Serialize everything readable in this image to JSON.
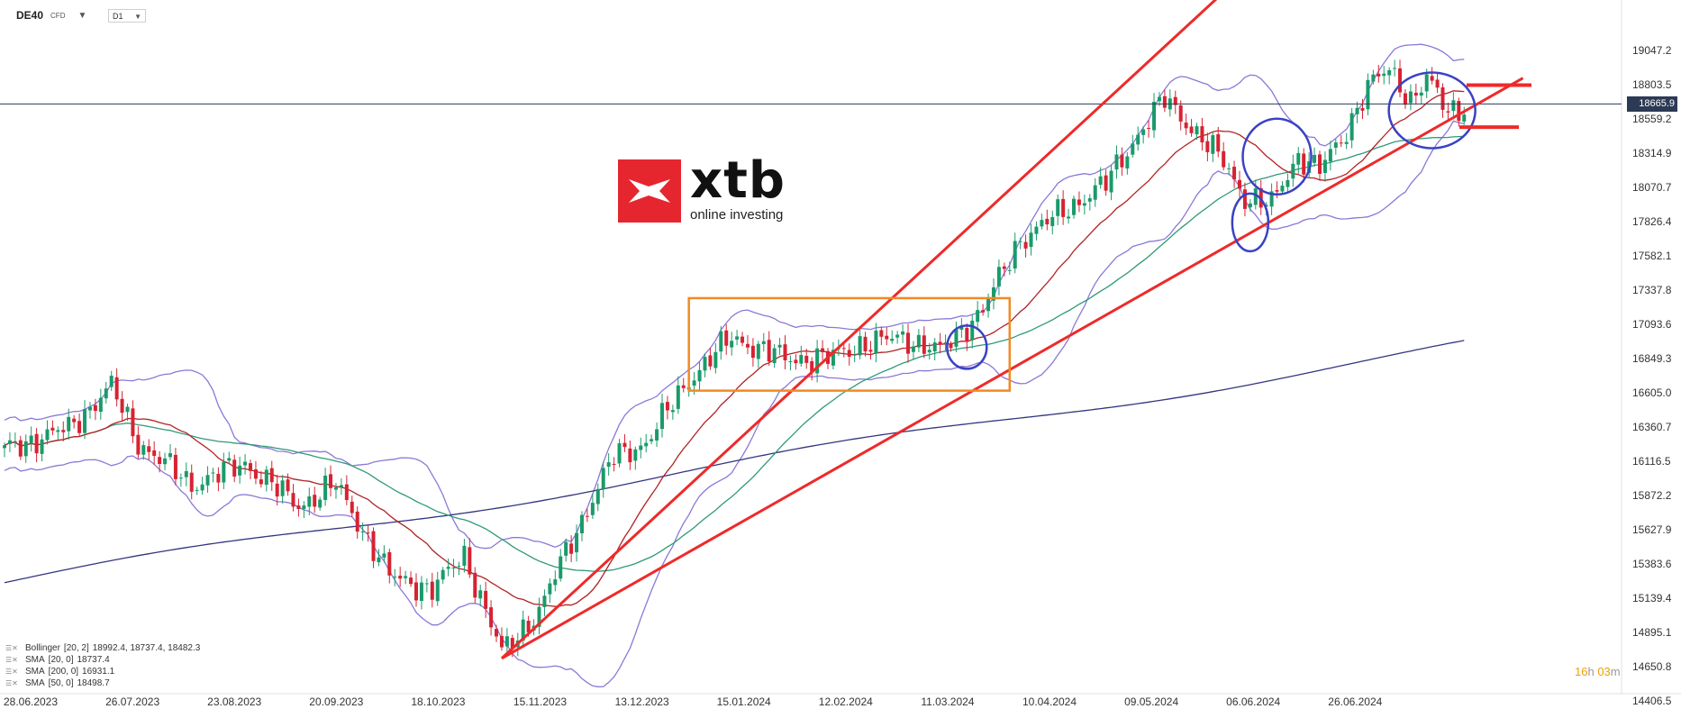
{
  "header": {
    "symbol": "DE40",
    "instrument_type": "CFD",
    "timeframe": "D1"
  },
  "logo": {
    "name": "xtb",
    "tagline": "online investing",
    "brand_color": "#e6262f"
  },
  "legend": [
    {
      "label": "Bollinger",
      "params": "[20, 2]",
      "values": "18992.4, 18737.4, 18482.3"
    },
    {
      "label": "SMA",
      "params": "[20, 0]",
      "values": "18737.4"
    },
    {
      "label": "SMA",
      "params": "[200, 0]",
      "values": "16931.1"
    },
    {
      "label": "SMA",
      "params": "[50, 0]",
      "values": "18498.7"
    }
  ],
  "timer": {
    "hours": "16",
    "h_unit": "h",
    "minutes": "03",
    "m_unit": "m"
  },
  "current_price": "18665.9",
  "colors": {
    "up_candle": "#1a9a6a",
    "down_candle": "#d62332",
    "bollinger": "#8b78d8",
    "sma20": "#b22222",
    "sma50": "#2e9a78",
    "sma200": "#33357f",
    "channel": "#ee2a2a",
    "box": "#f08a24",
    "circle": "#3a42c4",
    "price_line": "#2d3a55"
  },
  "chart_data": {
    "type": "candlestick",
    "y_axis": {
      "min": 14406.5,
      "max": 19047.2,
      "tick_labels": [
        "19047.2",
        "18803.5",
        "18559.2",
        "18314.9",
        "18070.7",
        "17826.4",
        "17582.1",
        "17337.8",
        "17093.6",
        "16849.3",
        "16605.0",
        "16360.7",
        "16116.5",
        "15872.2",
        "15627.9",
        "15383.6",
        "15139.4",
        "14895.1",
        "14650.8",
        "14406.5"
      ]
    },
    "x_axis": {
      "tick_labels": [
        "28.06.2023",
        "26.07.2023",
        "23.08.2023",
        "20.09.2023",
        "18.10.2023",
        "15.11.2023",
        "13.12.2023",
        "15.01.2024",
        "12.02.2024",
        "11.03.2024",
        "10.04.2024",
        "09.05.2024",
        "06.06.2024",
        "26.06.2024"
      ]
    },
    "anchors": [
      [
        0,
        16200
      ],
      [
        12,
        16350
      ],
      [
        20,
        16650
      ],
      [
        25,
        16250
      ],
      [
        35,
        15950
      ],
      [
        45,
        16100
      ],
      [
        55,
        15800
      ],
      [
        62,
        15950
      ],
      [
        72,
        15300
      ],
      [
        80,
        15200
      ],
      [
        86,
        15450
      ],
      [
        93,
        14750
      ],
      [
        100,
        15050
      ],
      [
        106,
        15550
      ],
      [
        114,
        16150
      ],
      [
        120,
        16250
      ],
      [
        128,
        16700
      ],
      [
        136,
        17000
      ],
      [
        146,
        16850
      ],
      [
        154,
        16850
      ],
      [
        160,
        16950
      ],
      [
        168,
        17000
      ],
      [
        175,
        16900
      ],
      [
        183,
        17200
      ],
      [
        190,
        17700
      ],
      [
        198,
        17900
      ],
      [
        206,
        18100
      ],
      [
        212,
        18450
      ],
      [
        217,
        18700
      ],
      [
        222,
        18500
      ],
      [
        228,
        18250
      ],
      [
        232,
        18000
      ],
      [
        237,
        17950
      ],
      [
        242,
        18300
      ],
      [
        246,
        18200
      ],
      [
        250,
        18400
      ],
      [
        255,
        18800
      ],
      [
        259,
        18900
      ],
      [
        263,
        18700
      ],
      [
        266,
        18850
      ],
      [
        270,
        18600
      ],
      [
        273,
        18650
      ]
    ],
    "series": [
      {
        "name": "Bollinger [20, 2]"
      },
      {
        "name": "SMA [20, 0]"
      },
      {
        "name": "SMA [50, 0]"
      },
      {
        "name": "SMA [200, 0]"
      }
    ],
    "annotations": {
      "channel_upper": [
        [
          93,
          14710
        ],
        [
          243,
          19990
        ]
      ],
      "channel_lower": [
        [
          93,
          14710
        ],
        [
          284,
          18850
        ]
      ],
      "consolidation_box": {
        "x": [
          128,
          188
        ],
        "y": [
          16620,
          17280
        ]
      },
      "circles": [
        {
          "bar": 180,
          "price": 16930
        },
        {
          "bar": 233,
          "price": 17820
        },
        {
          "bar": 238,
          "price": 18290
        },
        {
          "bar": 267,
          "price": 18620
        }
      ],
      "resistance_level": 18800,
      "support_level": 18500
    }
  }
}
